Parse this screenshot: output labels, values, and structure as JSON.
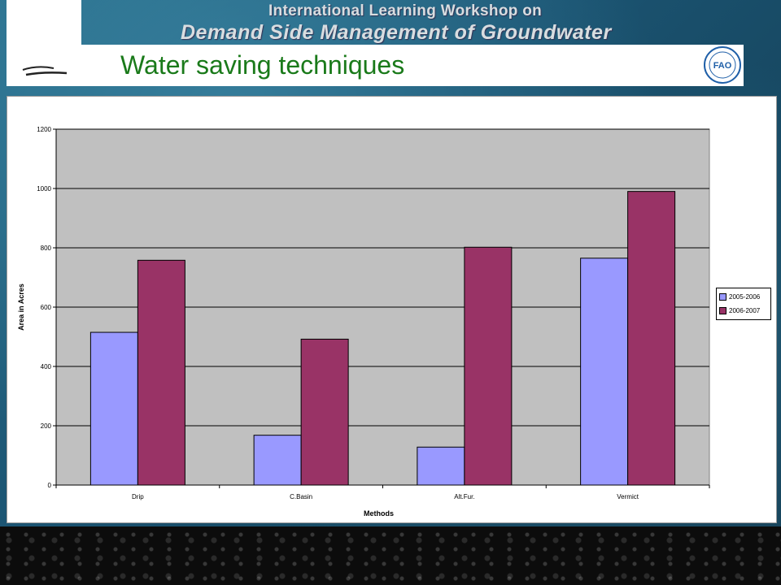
{
  "header": {
    "workshop_line1": "International Learning Workshop on",
    "workshop_line2": "Demand Side Management of Groundwater",
    "slide_title": "Water saving techniques",
    "logo_text": "FAO"
  },
  "colors": {
    "series_2005": "#9999ff",
    "series_2006": "#993366",
    "plot_area": "#c0c0c0",
    "title_green": "#1a7a1a"
  },
  "chart_data": {
    "type": "bar",
    "categories": [
      "Drip",
      "C.Basin",
      "Alt.Fur.",
      "Vermict"
    ],
    "series": [
      {
        "name": "2005-2006",
        "values": [
          515,
          168,
          128,
          765
        ]
      },
      {
        "name": "2006-2007",
        "values": [
          758,
          492,
          802,
          990
        ]
      }
    ],
    "xlabel": "Methods",
    "ylabel": "Area in Acres",
    "ylim": [
      0,
      1200
    ],
    "yticks": [
      "0",
      "200",
      "400",
      "600",
      "800",
      "1000",
      "1200"
    ],
    "grid": true,
    "legend_position": "right"
  }
}
